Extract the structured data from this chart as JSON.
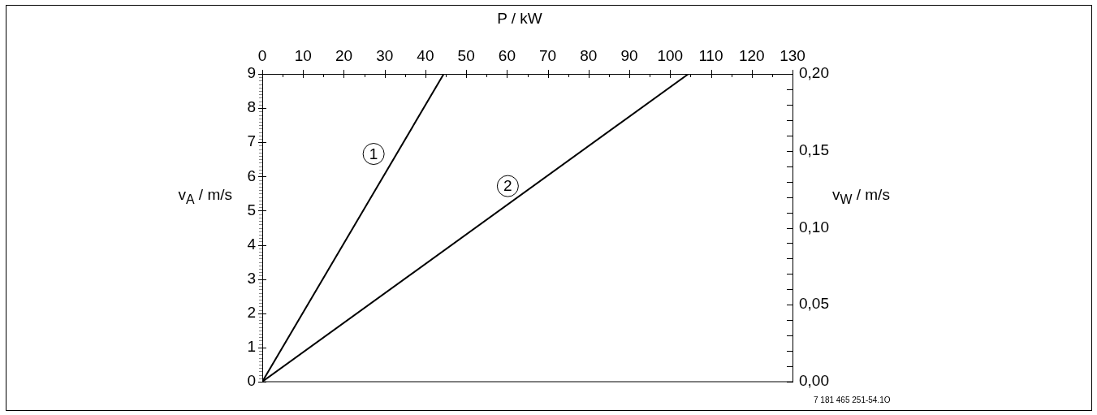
{
  "chart_data": {
    "type": "line",
    "xlabel": "P / kW",
    "ylabel": "v$_{A}$ / m/s",
    "y2label": "v$_{W}$ / m/s",
    "series": [
      {
        "color": "#000000",
        "x": [
          0,
          44.5
        ],
        "values": [
          0,
          9
        ]
      },
      {
        "color": "#000000",
        "x": [
          0,
          104.5
        ],
        "values": [
          0,
          0.2
        ],
        "axis": "y2"
      }
    ],
    "xlim": [
      0,
      130
    ],
    "xticks": [
      0,
      {
        "value": 5,
        "label": null
      },
      10,
      {
        "value": 15,
        "label": null
      },
      20,
      {
        "value": 25,
        "label": null
      },
      30,
      {
        "value": 35,
        "label": null
      },
      40,
      {
        "value": 45,
        "label": null
      },
      50,
      {
        "value": 55,
        "label": null
      },
      60,
      {
        "value": 65,
        "label": null
      },
      70,
      {
        "value": 75,
        "label": null
      },
      80,
      {
        "value": 85,
        "label": null
      },
      90,
      {
        "value": 95,
        "label": null
      },
      100,
      {
        "value": 105,
        "label": null
      },
      110,
      {
        "value": 115,
        "label": null
      },
      120,
      {
        "value": 125,
        "label": null
      },
      130
    ],
    "ylim": [
      0,
      9
    ],
    "yticks": [
      0,
      {
        "value": 0.1,
        "label": null
      },
      {
        "value": 0.2,
        "label": null
      },
      {
        "value": 0.3,
        "label": null
      },
      {
        "value": 0.4,
        "label": null
      },
      {
        "value": 0.5,
        "label": null
      },
      {
        "value": 0.6,
        "label": null
      },
      {
        "value": 0.7,
        "label": null
      },
      {
        "value": 0.8,
        "label": null
      },
      {
        "value": 0.9,
        "label": null
      },
      1,
      {
        "value": 1.1,
        "label": null
      },
      {
        "value": 1.2,
        "label": null
      },
      {
        "value": 1.3,
        "label": null
      },
      {
        "value": 1.4,
        "label": null
      },
      {
        "value": 1.5,
        "label": null
      },
      {
        "value": 1.6,
        "label": null
      },
      {
        "value": 1.7,
        "label": null
      },
      {
        "value": 1.8,
        "label": null
      },
      {
        "value": 1.9,
        "label": null
      },
      2,
      {
        "value": 2.1,
        "label": null
      },
      {
        "value": 2.2,
        "label": null
      },
      {
        "value": 2.3,
        "label": null
      },
      {
        "value": 2.4,
        "label": null
      },
      {
        "value": 2.5,
        "label": null
      },
      {
        "value": 2.6,
        "label": null
      },
      {
        "value": 2.7,
        "label": null
      },
      {
        "value": 2.8,
        "label": null
      },
      {
        "value": 2.9,
        "label": null
      },
      3,
      {
        "value": 3.1,
        "label": null
      },
      {
        "value": 3.2,
        "label": null
      },
      {
        "value": 3.3,
        "label": null
      },
      {
        "value": 3.4,
        "label": null
      },
      {
        "value": 3.5,
        "label": null
      },
      {
        "value": 3.6,
        "label": null
      },
      {
        "value": 3.7,
        "label": null
      },
      {
        "value": 3.8,
        "label": null
      },
      {
        "value": 3.9,
        "label": null
      },
      4,
      {
        "value": 4.1,
        "label": null
      },
      {
        "value": 4.2,
        "label": null
      },
      {
        "value": 4.3,
        "label": null
      },
      {
        "value": 4.4,
        "label": null
      },
      {
        "value": 4.5,
        "label": null
      },
      {
        "value": 4.6,
        "label": null
      },
      {
        "value": 4.7,
        "label": null
      },
      {
        "value": 4.8,
        "label": null
      },
      {
        "value": 4.9,
        "label": null
      },
      5,
      {
        "value": 5.1,
        "label": null
      },
      {
        "value": 5.2,
        "label": null
      },
      {
        "value": 5.3,
        "label": null
      },
      {
        "value": 5.4,
        "label": null
      },
      {
        "value": 5.5,
        "label": null
      },
      {
        "value": 5.6,
        "label": null
      },
      {
        "value": 5.7,
        "label": null
      },
      {
        "value": 5.8,
        "label": null
      },
      {
        "value": 5.9,
        "label": null
      },
      6,
      {
        "value": 6.1,
        "label": null
      },
      {
        "value": 6.2,
        "label": null
      },
      {
        "value": 6.3,
        "label": null
      },
      {
        "value": 6.4,
        "label": null
      },
      {
        "value": 6.5,
        "label": null
      },
      {
        "value": 6.6,
        "label": null
      },
      {
        "value": 6.7,
        "label": null
      },
      {
        "value": 6.8,
        "label": null
      },
      {
        "value": 6.9,
        "label": null
      },
      7,
      {
        "value": 7.1,
        "label": null
      },
      {
        "value": 7.2,
        "label": null
      },
      {
        "value": 7.3,
        "label": null
      },
      {
        "value": 7.4,
        "label": null
      },
      {
        "value": 7.5,
        "label": null
      },
      {
        "value": 7.6,
        "label": null
      },
      {
        "value": 7.7,
        "label": null
      },
      {
        "value": 7.8,
        "label": null
      },
      {
        "value": 7.9,
        "label": null
      },
      8,
      {
        "value": 8.1,
        "label": null
      },
      {
        "value": 8.2,
        "label": null
      },
      {
        "value": 8.3,
        "label": null
      },
      {
        "value": 8.4,
        "label": null
      },
      {
        "value": 8.5,
        "label": null
      },
      {
        "value": 8.6,
        "label": null
      },
      {
        "value": 8.7,
        "label": null
      },
      {
        "value": 8.8,
        "label": null
      },
      {
        "value": 8.9,
        "label": null
      },
      9
    ],
    "y2lim": [
      0,
      0.2
    ],
    "y2ticks": [
      {
        "value": 0,
        "label": "0,00"
      },
      {
        "value": 0.01,
        "label": null
      },
      {
        "value": 0.02,
        "label": null
      },
      {
        "value": 0.03,
        "label": null
      },
      {
        "value": 0.04,
        "label": null
      },
      {
        "value": 0.05,
        "label": "0,05"
      },
      {
        "value": 0.06,
        "label": null
      },
      {
        "value": 0.07,
        "label": null
      },
      {
        "value": 0.08,
        "label": null
      },
      {
        "value": 0.09,
        "label": null
      },
      {
        "value": 0.1,
        "label": "0,10"
      },
      {
        "value": 0.11,
        "label": null
      },
      {
        "value": 0.12,
        "label": null
      },
      {
        "value": 0.13,
        "label": null
      },
      {
        "value": 0.14,
        "label": null
      },
      {
        "value": 0.15,
        "label": "0,15"
      },
      {
        "value": 0.16,
        "label": null
      },
      {
        "value": 0.17,
        "label": null
      },
      {
        "value": 0.18,
        "label": null
      },
      {
        "value": 0.19,
        "label": null
      },
      {
        "value": 0.2,
        "label": "0,20"
      }
    ],
    "annotations": [
      {
        "text": "1",
        "x": 27.3,
        "y": 6.66
      },
      {
        "text": "2",
        "x": 60.2,
        "y": 5.72
      },
      "7 181 465 251-54.1O"
    ],
    "marker": "none",
    "line_style": "solid"
  }
}
